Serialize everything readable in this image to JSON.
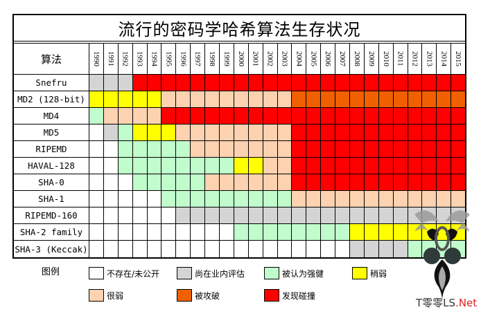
{
  "chart_data": {
    "type": "heatmap",
    "title": "流行的密码学哈希算法生存状况",
    "row_header": "算法",
    "years": [
      "1990",
      "1991",
      "1992",
      "1993",
      "1994",
      "1995",
      "1996",
      "1997",
      "1998",
      "1999",
      "2000",
      "2001",
      "2002",
      "2003",
      "2004",
      "2005",
      "2006",
      "2007",
      "2008",
      "2009",
      "2010",
      "2011",
      "2012",
      "2013",
      "2014",
      "2015"
    ],
    "status_colors": {
      "W": "#ffffff",
      "G": "#d4d4d4",
      "S": "#c0fccc",
      "Y": "#ffff00",
      "P": "#fcd2b0",
      "O": "#f06000",
      "R": "#ff0000"
    },
    "rows": [
      {
        "name": "Snefru",
        "status": "GGGRRRRRRRRRRRRRRRRRRRRRRR"
      },
      {
        "name": "MD2 (128-bit)",
        "status": "YYYYYPPPPPPPPPOOOOOOOOOOOO"
      },
      {
        "name": "MD4",
        "status": "SPPPPRRRRRRRRRRRRRRRRRRRRR"
      },
      {
        "name": "MD5",
        "status": "WGSYYYPPPPPPPPRRRRRRRRRRRR"
      },
      {
        "name": "RIPEMD",
        "status": "WWSSSSSPPPPPPPRRRRRRRRRRRR"
      },
      {
        "name": "HAVAL-128",
        "status": "WWSSSSSSSSYYPPRRRRRRRRRRRR"
      },
      {
        "name": "SHA-0",
        "status": "WWWSSSSSPPPPPPRRRRRRRRRRRR"
      },
      {
        "name": "SHA-1",
        "status": "WWWWWSSSSSSSSSPPPPPPPPPPPP"
      },
      {
        "name": "RIPEMD-160",
        "status": "WWWWWWGGGGGGGGGGGGGGGGGGGG"
      },
      {
        "name": "SHA-2 family",
        "status": "WWWWWWWWWWSSSSSSSSYYYYYYYY"
      },
      {
        "name": "SHA-3 (Keccak)",
        "status": "WWWWWWWWWWWWWWWWWWGGGGSSSS"
      }
    ],
    "legend": {
      "title": "图例",
      "items": [
        {
          "code": "W",
          "label": "不存在/未公开"
        },
        {
          "code": "G",
          "label": "尚在业内评估"
        },
        {
          "code": "S",
          "label": "被认为强健"
        },
        {
          "code": "Y",
          "label": "稍弱"
        },
        {
          "code": "P",
          "label": "很弱"
        },
        {
          "code": "O",
          "label": "被攻破"
        },
        {
          "code": "R",
          "label": "发现碰撞"
        }
      ]
    }
  },
  "watermark": {
    "text_main": "T零零LS",
    "text_net": ".Net"
  }
}
